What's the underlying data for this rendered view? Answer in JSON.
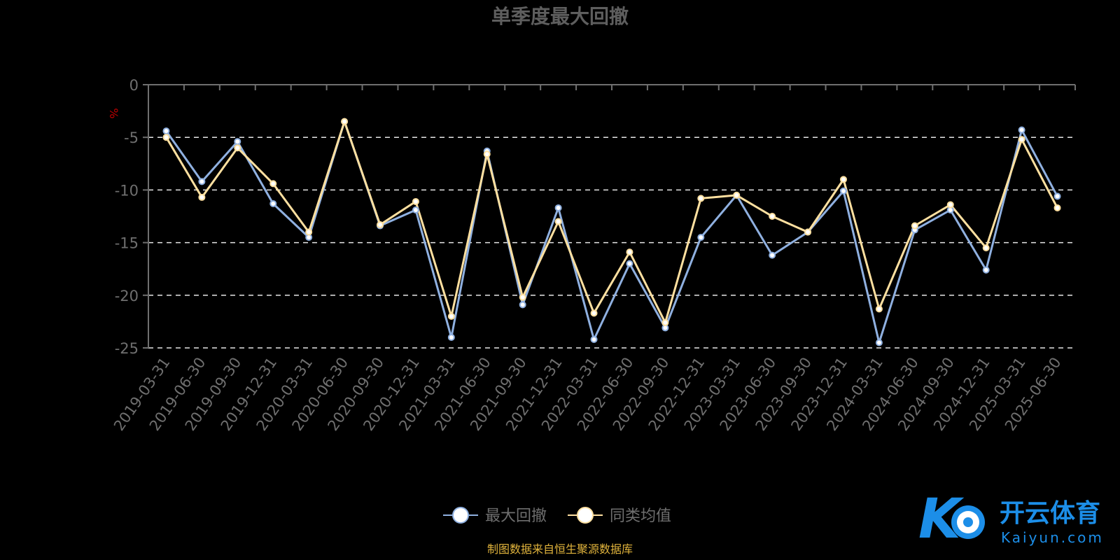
{
  "chart_data": {
    "type": "line",
    "title": "单季度最大回撤",
    "ylabel": "%",
    "ylim": [
      -25,
      0
    ],
    "yticks": [
      0,
      -5,
      -10,
      -15,
      -20,
      -25
    ],
    "grid": true,
    "legend_position": "bottom-center",
    "categories": [
      "2019-03-31",
      "2019-06-30",
      "2019-09-30",
      "2019-12-31",
      "2020-03-31",
      "2020-06-30",
      "2020-09-30",
      "2020-12-31",
      "2021-03-31",
      "2021-06-30",
      "2021-09-30",
      "2021-12-31",
      "2022-03-31",
      "2022-06-30",
      "2022-09-30",
      "2022-12-31",
      "2023-03-31",
      "2023-06-30",
      "2023-09-30",
      "2023-12-31",
      "2024-03-31",
      "2024-06-30",
      "2024-09-30",
      "2024-12-31",
      "2025-03-31",
      "2025-06-30"
    ],
    "series": [
      {
        "name": "最大回撤",
        "color": "#8fb0e0",
        "values": [
          -4.4,
          -9.2,
          -5.4,
          -11.3,
          -14.5,
          -3.5,
          -13.4,
          -11.9,
          -24.0,
          -6.3,
          -20.9,
          -11.7,
          -24.2,
          -17.0,
          -23.1,
          -14.5,
          -10.5,
          -16.2,
          -14.0,
          -10.1,
          -24.5,
          -13.8,
          -11.9,
          -17.6,
          -4.3,
          -10.6
        ]
      },
      {
        "name": "同类均值",
        "color": "#ffe0a0",
        "values": [
          -5.0,
          -10.7,
          -6.0,
          -9.4,
          -14.0,
          -3.5,
          -13.3,
          -11.1,
          -22.0,
          -6.6,
          -20.2,
          -13.0,
          -21.7,
          -15.9,
          -22.6,
          -10.8,
          -10.5,
          -12.5,
          -14.0,
          -9.0,
          -21.3,
          -13.4,
          -11.4,
          -15.5,
          -5.2,
          -11.7
        ]
      }
    ]
  },
  "footer": {
    "source": "制图数据来自恒生聚源数据库"
  },
  "watermark": {
    "brand_cn": "开云体育",
    "brand_en": "Kaiyun.com",
    "accent": "#1c8ee8"
  }
}
